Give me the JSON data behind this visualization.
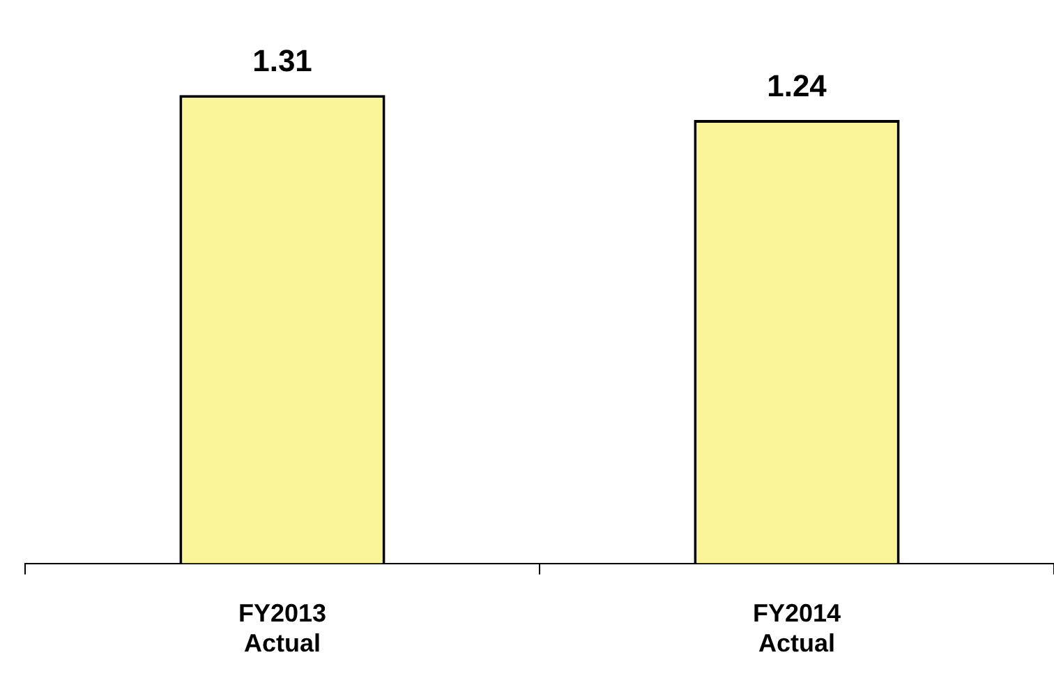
{
  "chart_data": {
    "type": "bar",
    "categories": [
      "FY2013 Actual",
      "FY2014 Actual"
    ],
    "values": [
      1.31,
      1.24
    ],
    "color": "#fbf59a",
    "data_labels": true,
    "grid": false,
    "legend": false,
    "tick_labels": "x"
  }
}
